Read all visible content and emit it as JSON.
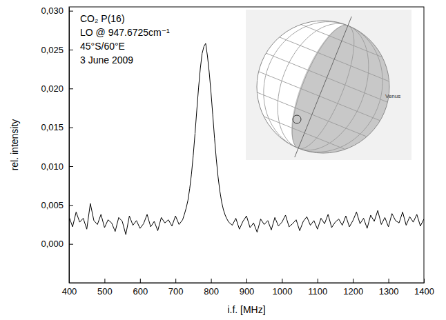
{
  "chart_data": {
    "type": "line",
    "x_label": "i.f. [MHz]",
    "y_label": "rel. intensity",
    "annotations": [
      "CO₂ P(16)",
      "LO @ 947.6725cm⁻¹",
      "45°S/60°E",
      "3 June 2009"
    ],
    "inset_label": "Venus",
    "grid": false,
    "xlim": [
      400,
      1400
    ],
    "xticks": [
      400,
      500,
      600,
      700,
      800,
      900,
      1000,
      1100,
      1200,
      1300,
      1400
    ],
    "ylim": [
      -0.005,
      0.0305
    ],
    "yticks": [
      {
        "value": 0,
        "label": "0,000"
      },
      {
        "value": 0.005,
        "label": "0,005"
      },
      {
        "value": 0.01,
        "label": "0,010"
      },
      {
        "value": 0.015,
        "label": "0,015"
      },
      {
        "value": 0.02,
        "label": "0,020"
      },
      {
        "value": 0.025,
        "label": "0,025"
      },
      {
        "value": 0.03,
        "label": "0,030"
      }
    ],
    "x": [
      400,
      410,
      420,
      430,
      440,
      450,
      460,
      470,
      480,
      490,
      500,
      510,
      520,
      530,
      540,
      550,
      560,
      570,
      580,
      590,
      600,
      610,
      620,
      630,
      640,
      650,
      660,
      670,
      680,
      690,
      700,
      710,
      720,
      725,
      730,
      735,
      740,
      745,
      750,
      755,
      760,
      765,
      770,
      775,
      780,
      785,
      790,
      795,
      800,
      805,
      810,
      815,
      820,
      825,
      830,
      835,
      840,
      845,
      850,
      860,
      870,
      880,
      890,
      900,
      910,
      920,
      930,
      940,
      950,
      960,
      970,
      980,
      990,
      1000,
      1010,
      1020,
      1030,
      1040,
      1050,
      1060,
      1070,
      1080,
      1090,
      1100,
      1110,
      1120,
      1130,
      1140,
      1150,
      1160,
      1170,
      1180,
      1190,
      1200,
      1210,
      1220,
      1230,
      1240,
      1250,
      1260,
      1270,
      1280,
      1290,
      1300,
      1310,
      1320,
      1330,
      1340,
      1350,
      1360,
      1370,
      1380,
      1390,
      1400
    ],
    "series": [
      {
        "color": "#000000",
        "values": [
          0.0035,
          0.0022,
          0.0041,
          0.0028,
          0.0033,
          0.0019,
          0.0052,
          0.003,
          0.0025,
          0.0038,
          0.0021,
          0.0031,
          0.0027,
          0.0016,
          0.0034,
          0.0029,
          0.0012,
          0.0036,
          0.0024,
          0.003,
          0.002,
          0.0026,
          0.0038,
          0.0022,
          0.0029,
          0.0017,
          0.0034,
          0.0027,
          0.0031,
          0.0023,
          0.0036,
          0.0025,
          0.0031,
          0.0038,
          0.0046,
          0.0056,
          0.0071,
          0.009,
          0.0114,
          0.0142,
          0.0172,
          0.0201,
          0.0226,
          0.0245,
          0.0254,
          0.0258,
          0.0242,
          0.0221,
          0.0195,
          0.0166,
          0.0136,
          0.0109,
          0.0086,
          0.0068,
          0.0054,
          0.0044,
          0.0037,
          0.0032,
          0.0028,
          0.0024,
          0.0033,
          0.0019,
          0.0029,
          0.0036,
          0.0021,
          0.0027,
          0.0015,
          0.0032,
          0.0025,
          0.003,
          0.0018,
          0.0034,
          0.0023,
          0.0028,
          0.0037,
          0.0022,
          0.0026,
          0.0031,
          0.0017,
          0.0029,
          0.0035,
          0.0024,
          0.003,
          0.0019,
          0.0033,
          0.0026,
          0.0038,
          0.0021,
          0.0028,
          0.0032,
          0.0024,
          0.0036,
          0.0022,
          0.003,
          0.0041,
          0.0026,
          0.0033,
          0.002,
          0.0037,
          0.0029,
          0.0043,
          0.0025,
          0.0034,
          0.0022,
          0.0039,
          0.003,
          0.0027,
          0.0041,
          0.0024,
          0.0035,
          0.0028,
          0.0038,
          0.0023,
          0.0032
        ]
      }
    ]
  }
}
